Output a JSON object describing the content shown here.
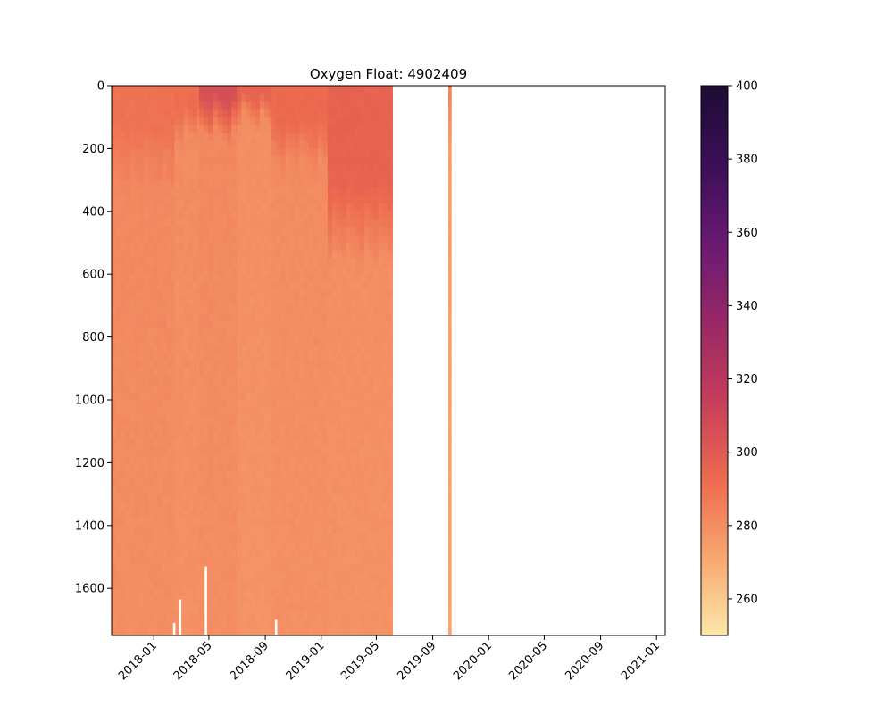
{
  "chart_data": {
    "type": "heatmap",
    "title": "Oxygen Float: 4902409",
    "xlabel": "",
    "ylabel": "",
    "x_axis": {
      "type": "date",
      "range": [
        "2017-10-01",
        "2021-01-20"
      ],
      "ticks": [
        "2018-01",
        "2018-05",
        "2018-09",
        "2019-01",
        "2019-05",
        "2019-09",
        "2020-01",
        "2020-05",
        "2020-09",
        "2021-01"
      ]
    },
    "y_axis": {
      "range": [
        0,
        1750
      ],
      "inverted": true,
      "ticks": [
        0,
        200,
        400,
        600,
        800,
        1000,
        1200,
        1400,
        1600
      ]
    },
    "colorbar": {
      "colormap": "magma_r",
      "range": [
        250,
        400
      ],
      "ticks": [
        260,
        280,
        300,
        320,
        340,
        360,
        380,
        400
      ],
      "colors": [
        "#fde7a9",
        "#f8a66f",
        "#ec6a4f",
        "#c43e5a",
        "#982766",
        "#6a1973",
        "#3b0f58",
        "#1c0d33"
      ]
    },
    "profile_period_days": 10,
    "profiles": [
      {
        "start": "2017-10-01",
        "end": "2018-02-15",
        "surface": 290,
        "deep": 282,
        "mixed_layer_depth": 120,
        "thermocline_depth": 300
      },
      {
        "start": "2018-02-15",
        "end": "2018-04-10",
        "surface": 292,
        "deep": 281,
        "mixed_layer_depth": 60,
        "thermocline_depth": 150
      },
      {
        "start": "2018-04-10",
        "end": "2018-07-01",
        "surface": 305,
        "deep": 282,
        "mixed_layer_depth": 30,
        "thermocline_depth": 150
      },
      {
        "start": "2018-07-01",
        "end": "2018-09-15",
        "surface": 296,
        "deep": 280,
        "mixed_layer_depth": 20,
        "thermocline_depth": 100
      },
      {
        "start": "2018-09-15",
        "end": "2019-01-15",
        "surface": 293,
        "deep": 281,
        "mixed_layer_depth": 100,
        "thermocline_depth": 250
      },
      {
        "start": "2019-01-15",
        "end": "2019-06-05",
        "surface": 296,
        "deep": 280,
        "mixed_layer_depth": 300,
        "thermocline_depth": 550
      }
    ],
    "isolated_profiles": [
      {
        "date": "2019-10-05",
        "surface": 284,
        "deep": 274
      }
    ],
    "missing_segments": [
      {
        "date": "2018-02-12",
        "depth_from": 1710,
        "depth_to": 1750
      },
      {
        "date": "2018-02-25",
        "depth_from": 1635,
        "depth_to": 1750
      },
      {
        "date": "2018-04-22",
        "depth_from": 1530,
        "depth_to": 1750
      },
      {
        "date": "2018-09-22",
        "depth_from": 1700,
        "depth_to": 1750
      }
    ]
  }
}
